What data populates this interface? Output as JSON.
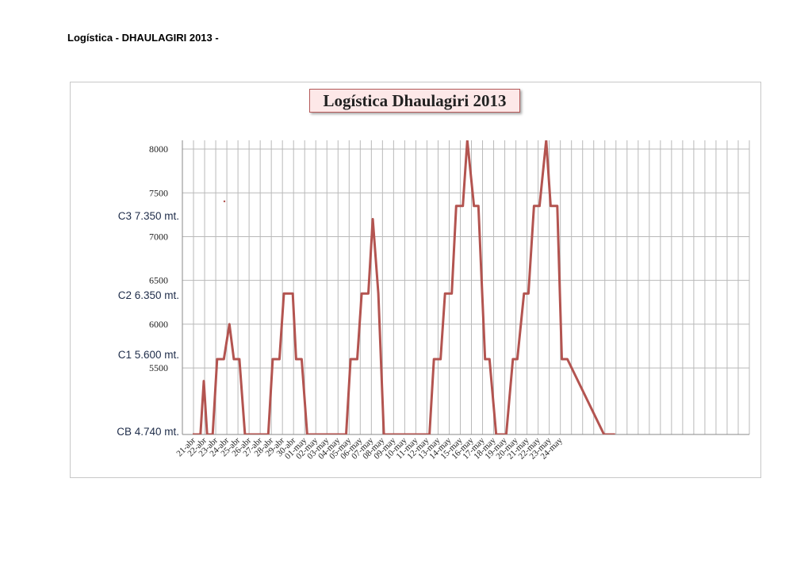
{
  "page_header": "Logística - DHAULAGIRI 2013 -",
  "chart_data": {
    "type": "line",
    "title": "Logística Dhaulagiri 2013",
    "xlabel": "",
    "ylabel": "",
    "ylim": [
      4740,
      8100
    ],
    "y_ticks": [
      5500,
      6000,
      6500,
      7000,
      7500,
      8000
    ],
    "grid": true,
    "legend": "none",
    "line_color": "#b35450",
    "camp_labels": [
      {
        "text": "C3  7.350 mt.",
        "value": 7350
      },
      {
        "text": "C2 6.350 mt.",
        "value": 6350
      },
      {
        "text": "C1 5.600 mt.",
        "value": 5600
      },
      {
        "text": "CB 4.740 mt.",
        "value": 4740
      }
    ],
    "categories": [
      "21-abr",
      "22-abr",
      "23-abr",
      "24-abr",
      "25-abr",
      "26-abr",
      "27-abr",
      "28-abr",
      "29-abr",
      "30-abr",
      "01-may",
      "02-may",
      "03-may",
      "04-may",
      "05-may",
      "06-may",
      "07-may",
      "08-may",
      "09-may",
      "10-may",
      "11-may",
      "12-may",
      "13-may",
      "14-may",
      "15-may",
      "16-may",
      "17-may",
      "18-may",
      "19-may",
      "20-may",
      "21-may",
      "22-may",
      "23-may",
      "24-may"
    ],
    "series": [
      {
        "x": [
          0,
          0.7,
          1.0,
          1.3,
          1.8,
          2.2,
          2.8,
          3.3,
          3.7,
          4.2,
          4.7,
          5.2,
          6.8,
          7.2,
          7.8,
          8.2,
          9.0,
          9.3,
          9.8,
          10.3,
          10.7,
          13.8,
          14.2,
          14.8,
          15.2,
          15.8,
          16.2,
          16.7,
          17.2,
          17.5,
          21.3,
          21.7,
          22.3,
          22.7,
          23.3,
          23.7,
          24.3,
          24.7,
          25.3,
          25.7,
          26.3,
          26.7,
          27.3,
          27.7,
          28.2,
          28.8,
          29.2,
          29.8,
          30.2,
          30.7,
          31.2,
          31.8,
          32.2,
          32.8,
          33.2,
          33.7,
          37.0,
          38.0
        ],
        "y": [
          4740,
          4740,
          5350,
          4740,
          4740,
          5600,
          5600,
          6000,
          5600,
          5600,
          4740,
          4740,
          4740,
          5600,
          5600,
          6350,
          6350,
          5600,
          5600,
          4740,
          4740,
          4740,
          5600,
          5600,
          6350,
          6350,
          7200,
          6350,
          4740,
          4740,
          4740,
          5600,
          5600,
          6350,
          6350,
          7350,
          7350,
          8100,
          7350,
          7350,
          5600,
          5600,
          4740,
          4740,
          4740,
          5600,
          5600,
          6350,
          6350,
          7350,
          7350,
          8100,
          7350,
          7350,
          5600,
          5600,
          4740,
          4740
        ]
      }
    ]
  }
}
